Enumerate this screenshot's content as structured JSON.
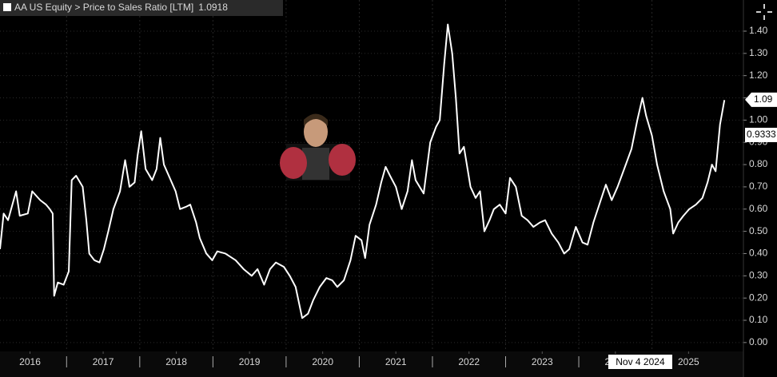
{
  "chart_data": {
    "type": "line",
    "title": "AA US Equity > Price to Sales Ratio [LTM]",
    "title_value": 1.0918,
    "x": [
      2016.09,
      2016.14,
      2016.2,
      2016.31,
      2016.36,
      2016.47,
      2016.53,
      2016.64,
      2016.72,
      2016.77,
      2016.81,
      2016.83,
      2016.88,
      2016.96,
      2017.03,
      2017.07,
      2017.13,
      2017.22,
      2017.27,
      2017.31,
      2017.38,
      2017.45,
      2017.51,
      2017.57,
      2017.64,
      2017.73,
      2017.8,
      2017.86,
      2017.93,
      2017.97,
      2018.02,
      2018.08,
      2018.17,
      2018.23,
      2018.28,
      2018.33,
      2018.41,
      2018.49,
      2018.55,
      2018.63,
      2018.69,
      2018.77,
      2018.82,
      2018.91,
      2018.99,
      2019.06,
      2019.17,
      2019.31,
      2019.42,
      2019.53,
      2019.61,
      2019.7,
      2019.78,
      2019.86,
      2019.97,
      2020.05,
      2020.13,
      2020.22,
      2020.3,
      2020.37,
      2020.46,
      2020.55,
      2020.63,
      2020.7,
      2020.79,
      2020.88,
      2020.95,
      2021.03,
      2021.08,
      2021.14,
      2021.23,
      2021.3,
      2021.36,
      2021.42,
      2021.5,
      2021.58,
      2021.66,
      2021.72,
      2021.77,
      2021.88,
      2021.97,
      2022.05,
      2022.1,
      2022.16,
      2022.21,
      2022.27,
      2022.32,
      2022.37,
      2022.43,
      2022.52,
      2022.59,
      2022.65,
      2022.71,
      2022.78,
      2022.84,
      2022.92,
      2023.0,
      2023.06,
      2023.14,
      2023.22,
      2023.3,
      2023.38,
      2023.47,
      2023.54,
      2023.63,
      2023.72,
      2023.8,
      2023.87,
      2023.96,
      2024.05,
      2024.12,
      2024.2,
      2024.29,
      2024.37,
      2024.45,
      2024.53,
      2024.62,
      2024.72,
      2024.8,
      2024.87,
      2024.92,
      2025.0,
      2025.07,
      2025.16,
      2025.25,
      2025.29,
      2025.36,
      2025.43,
      2025.51,
      2025.6,
      2025.69,
      2025.76,
      2025.82,
      2025.87,
      2025.93,
      2025.99
    ],
    "series": [
      {
        "name": "AA US Equity > Price to Sales Ratio [LTM]",
        "color": "#ffffff",
        "values": [
          0.42,
          0.58,
          0.55,
          0.68,
          0.57,
          0.58,
          0.68,
          0.64,
          0.62,
          0.6,
          0.58,
          0.21,
          0.27,
          0.26,
          0.32,
          0.73,
          0.75,
          0.7,
          0.55,
          0.4,
          0.37,
          0.36,
          0.42,
          0.5,
          0.6,
          0.68,
          0.82,
          0.7,
          0.72,
          0.84,
          0.95,
          0.78,
          0.73,
          0.78,
          0.92,
          0.8,
          0.74,
          0.68,
          0.6,
          0.61,
          0.62,
          0.54,
          0.47,
          0.4,
          0.37,
          0.41,
          0.4,
          0.37,
          0.33,
          0.3,
          0.33,
          0.26,
          0.33,
          0.36,
          0.34,
          0.3,
          0.25,
          0.11,
          0.13,
          0.19,
          0.25,
          0.29,
          0.28,
          0.25,
          0.28,
          0.37,
          0.48,
          0.46,
          0.38,
          0.53,
          0.62,
          0.72,
          0.79,
          0.75,
          0.7,
          0.6,
          0.68,
          0.82,
          0.73,
          0.67,
          0.9,
          0.97,
          1.0,
          1.25,
          1.43,
          1.3,
          1.1,
          0.85,
          0.88,
          0.7,
          0.65,
          0.68,
          0.5,
          0.55,
          0.6,
          0.62,
          0.58,
          0.74,
          0.7,
          0.57,
          0.55,
          0.52,
          0.54,
          0.55,
          0.49,
          0.45,
          0.4,
          0.42,
          0.52,
          0.45,
          0.44,
          0.54,
          0.63,
          0.71,
          0.64,
          0.7,
          0.78,
          0.87,
          1.0,
          1.1,
          1.02,
          0.93,
          0.8,
          0.68,
          0.6,
          0.49,
          0.54,
          0.57,
          0.6,
          0.62,
          0.65,
          0.72,
          0.8,
          0.77,
          0.98,
          1.09
        ]
      }
    ],
    "xlim": [
      2016.09,
      2026.25
    ],
    "xticks": [
      {
        "value": 2016.5,
        "label": "2016"
      },
      {
        "value": 2017.5,
        "label": "2017"
      },
      {
        "value": 2018.5,
        "label": "2018"
      },
      {
        "value": 2019.5,
        "label": "2019"
      },
      {
        "value": 2020.5,
        "label": "2020"
      },
      {
        "value": 2021.5,
        "label": "2021"
      },
      {
        "value": 2022.5,
        "label": "2022"
      },
      {
        "value": 2023.5,
        "label": "2023"
      },
      {
        "value": 2024.5,
        "label": "2024"
      },
      {
        "value": 2025.5,
        "label": "2025"
      }
    ],
    "ylim": [
      -0.04,
      1.54
    ],
    "yticks": [
      {
        "value": 0,
        "label": "0.00"
      },
      {
        "value": 0.1,
        "label": "0.10"
      },
      {
        "value": 0.2,
        "label": "0.20"
      },
      {
        "value": 0.3,
        "label": "0.30"
      },
      {
        "value": 0.4,
        "label": "0.40"
      },
      {
        "value": 0.5,
        "label": "0.50"
      },
      {
        "value": 0.6,
        "label": "0.60"
      },
      {
        "value": 0.7,
        "label": "0.70"
      },
      {
        "value": 0.8,
        "label": "0.80"
      },
      {
        "value": 0.9,
        "label": "0.90"
      },
      {
        "value": 1.0,
        "label": "1.00"
      },
      {
        "value": 1.1,
        "label": "1.10"
      },
      {
        "value": 1.2,
        "label": "1.20"
      },
      {
        "value": 1.3,
        "label": "1.30"
      },
      {
        "value": 1.4,
        "label": "1.40"
      }
    ],
    "last_price_tag": {
      "value": 1.0918,
      "label": "1.09"
    },
    "cursor": {
      "x": 2024.84,
      "x_label": "Nov 4 2024",
      "y": 0.9333
    },
    "grid": true
  }
}
